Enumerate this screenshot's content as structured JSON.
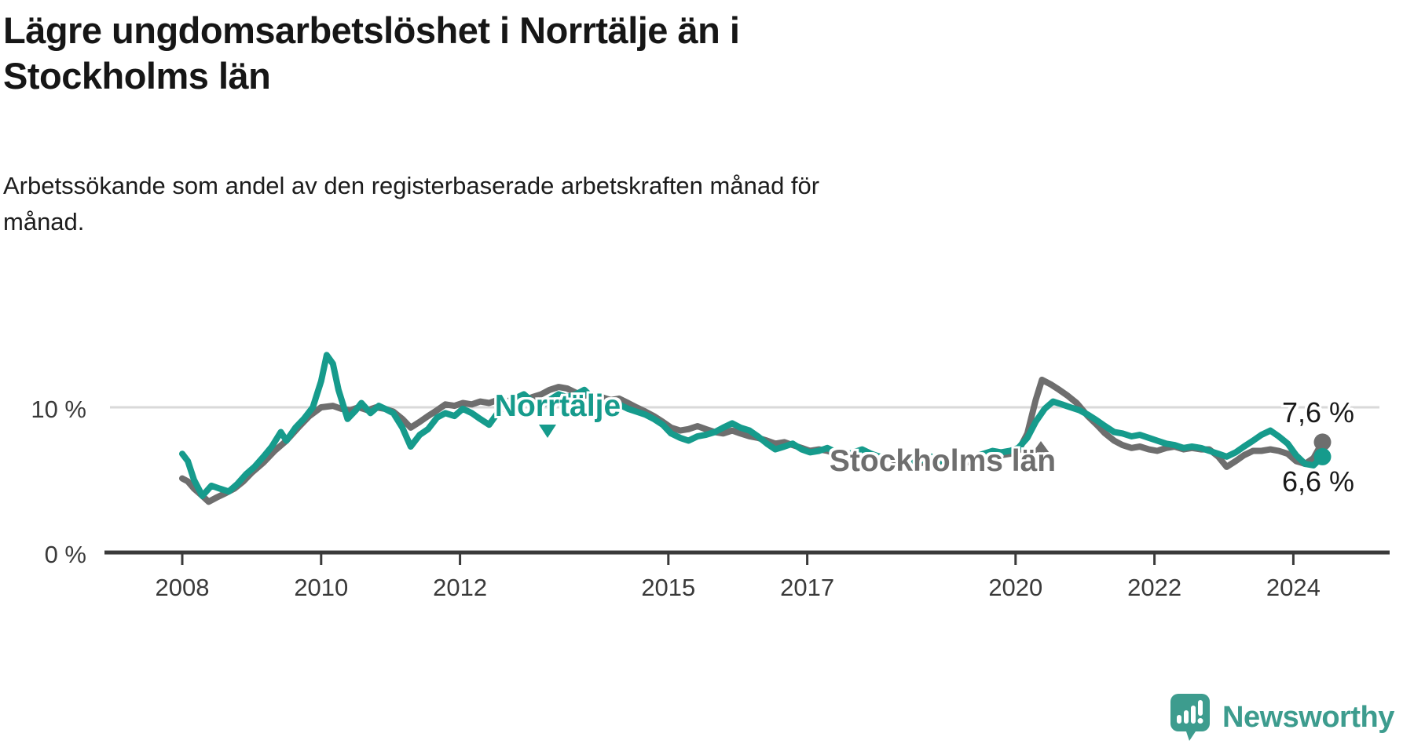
{
  "header": {
    "title_line1": "Lägre ungdomsarbetslöshet i Norrtälje än i",
    "title_line2": "Stockholms län",
    "subtitle_line1": "Arbetssökande som andel av den registerbaserade arbetskraften månad för",
    "subtitle_line2": "månad."
  },
  "branding": {
    "logo_text": "Newsworthy",
    "logo_icon": "newsworthy-speech-bubble-chart-icon",
    "brand_color": "#3d9c8e"
  },
  "chart_data": {
    "type": "line",
    "unit": "%",
    "grid": "single horizontal gridline at 10 %",
    "legend_position": "inline labels on lines",
    "x_axis": {
      "ticks": [
        2008,
        2010,
        2012,
        2015,
        2017,
        2020,
        2022,
        2024
      ],
      "range_years": [
        2006.9,
        2025.3
      ]
    },
    "y_axis": {
      "ticks": [
        {
          "value": 0,
          "label": "0 %"
        },
        {
          "value": 10,
          "label": "10 %"
        }
      ],
      "range": [
        0,
        14.5
      ]
    },
    "colors": {
      "norrtalje": "#169b8c",
      "stockholm": "#6e6e6e",
      "gridline": "#d9d9d9",
      "axis": "#3a3a3a"
    },
    "series": [
      {
        "name": "Stockholms län",
        "color": "#6e6e6e",
        "end_label": "7,6 %",
        "end_value": 7.6,
        "points": [
          [
            2008.0,
            5.1
          ],
          [
            2008.08,
            4.9
          ],
          [
            2008.17,
            4.4
          ],
          [
            2008.29,
            3.9
          ],
          [
            2008.38,
            3.5
          ],
          [
            2008.5,
            3.8
          ],
          [
            2008.63,
            4.1
          ],
          [
            2008.75,
            4.4
          ],
          [
            2008.88,
            4.9
          ],
          [
            2009.0,
            5.5
          ],
          [
            2009.17,
            6.2
          ],
          [
            2009.33,
            7.0
          ],
          [
            2009.5,
            7.7
          ],
          [
            2009.67,
            8.6
          ],
          [
            2009.83,
            9.4
          ],
          [
            2010.0,
            10.0
          ],
          [
            2010.17,
            10.1
          ],
          [
            2010.29,
            9.9
          ],
          [
            2010.42,
            9.8
          ],
          [
            2010.54,
            10.0
          ],
          [
            2010.67,
            9.8
          ],
          [
            2010.79,
            10.0
          ],
          [
            2010.92,
            9.9
          ],
          [
            2011.04,
            9.7
          ],
          [
            2011.17,
            9.2
          ],
          [
            2011.29,
            8.6
          ],
          [
            2011.42,
            9.0
          ],
          [
            2011.54,
            9.4
          ],
          [
            2011.67,
            9.8
          ],
          [
            2011.79,
            10.2
          ],
          [
            2011.92,
            10.1
          ],
          [
            2012.04,
            10.3
          ],
          [
            2012.17,
            10.2
          ],
          [
            2012.29,
            10.4
          ],
          [
            2012.42,
            10.3
          ],
          [
            2012.54,
            10.5
          ],
          [
            2012.67,
            10.4
          ],
          [
            2012.79,
            10.6
          ],
          [
            2012.92,
            10.5
          ],
          [
            2013.04,
            10.7
          ],
          [
            2013.17,
            10.9
          ],
          [
            2013.29,
            11.2
          ],
          [
            2013.42,
            11.4
          ],
          [
            2013.54,
            11.3
          ],
          [
            2013.67,
            11.0
          ],
          [
            2013.79,
            10.8
          ],
          [
            2013.92,
            10.9
          ],
          [
            2014.04,
            10.7
          ],
          [
            2014.17,
            10.5
          ],
          [
            2014.29,
            10.6
          ],
          [
            2014.42,
            10.3
          ],
          [
            2014.54,
            10.0
          ],
          [
            2014.67,
            9.7
          ],
          [
            2014.79,
            9.4
          ],
          [
            2014.92,
            9.0
          ],
          [
            2015.04,
            8.6
          ],
          [
            2015.17,
            8.4
          ],
          [
            2015.29,
            8.5
          ],
          [
            2015.42,
            8.7
          ],
          [
            2015.54,
            8.5
          ],
          [
            2015.67,
            8.3
          ],
          [
            2015.79,
            8.2
          ],
          [
            2015.92,
            8.4
          ],
          [
            2016.04,
            8.2
          ],
          [
            2016.17,
            8.0
          ],
          [
            2016.29,
            7.9
          ],
          [
            2016.42,
            7.7
          ],
          [
            2016.54,
            7.5
          ],
          [
            2016.67,
            7.6
          ],
          [
            2016.79,
            7.4
          ],
          [
            2016.92,
            7.2
          ],
          [
            2017.04,
            7.0
          ],
          [
            2017.17,
            7.1
          ],
          [
            2017.29,
            7.0
          ],
          [
            2017.42,
            6.8
          ],
          [
            2017.54,
            6.6
          ],
          [
            2017.67,
            6.8
          ],
          [
            2017.79,
            6.9
          ],
          [
            2017.92,
            6.6
          ],
          [
            2018.04,
            6.4
          ],
          [
            2018.17,
            6.5
          ],
          [
            2018.29,
            6.3
          ],
          [
            2018.42,
            6.1
          ],
          [
            2018.54,
            6.0
          ],
          [
            2018.67,
            6.2
          ],
          [
            2018.79,
            6.4
          ],
          [
            2018.92,
            6.1
          ],
          [
            2019.04,
            6.3
          ],
          [
            2019.17,
            6.4
          ],
          [
            2019.29,
            6.2
          ],
          [
            2019.42,
            6.4
          ],
          [
            2019.54,
            6.6
          ],
          [
            2019.67,
            6.8
          ],
          [
            2019.79,
            6.7
          ],
          [
            2019.92,
            6.8
          ],
          [
            2020.04,
            7.0
          ],
          [
            2020.17,
            8.2
          ],
          [
            2020.29,
            10.5
          ],
          [
            2020.38,
            11.9
          ],
          [
            2020.5,
            11.6
          ],
          [
            2020.63,
            11.2
          ],
          [
            2020.75,
            10.8
          ],
          [
            2020.88,
            10.3
          ],
          [
            2021.04,
            9.4
          ],
          [
            2021.17,
            8.8
          ],
          [
            2021.29,
            8.2
          ],
          [
            2021.42,
            7.7
          ],
          [
            2021.54,
            7.4
          ],
          [
            2021.67,
            7.2
          ],
          [
            2021.79,
            7.3
          ],
          [
            2021.92,
            7.1
          ],
          [
            2022.04,
            7.0
          ],
          [
            2022.17,
            7.2
          ],
          [
            2022.29,
            7.3
          ],
          [
            2022.42,
            7.1
          ],
          [
            2022.54,
            7.2
          ],
          [
            2022.67,
            7.1
          ],
          [
            2022.79,
            7.1
          ],
          [
            2022.92,
            6.6
          ],
          [
            2023.04,
            5.9
          ],
          [
            2023.17,
            6.3
          ],
          [
            2023.29,
            6.7
          ],
          [
            2023.42,
            7.0
          ],
          [
            2023.54,
            7.0
          ],
          [
            2023.67,
            7.1
          ],
          [
            2023.79,
            7.0
          ],
          [
            2023.92,
            6.8
          ],
          [
            2024.04,
            6.3
          ],
          [
            2024.17,
            6.1
          ],
          [
            2024.29,
            6.5
          ],
          [
            2024.42,
            7.6
          ]
        ]
      },
      {
        "name": "Norrtälje",
        "color": "#169b8c",
        "end_label": "6,6 %",
        "end_value": 6.6,
        "points": [
          [
            2008.0,
            6.8
          ],
          [
            2008.08,
            6.3
          ],
          [
            2008.17,
            5.0
          ],
          [
            2008.29,
            3.9
          ],
          [
            2008.42,
            4.6
          ],
          [
            2008.54,
            4.4
          ],
          [
            2008.67,
            4.2
          ],
          [
            2008.79,
            4.7
          ],
          [
            2008.92,
            5.4
          ],
          [
            2009.04,
            5.9
          ],
          [
            2009.17,
            6.6
          ],
          [
            2009.29,
            7.3
          ],
          [
            2009.42,
            8.3
          ],
          [
            2009.5,
            7.7
          ],
          [
            2009.63,
            8.6
          ],
          [
            2009.75,
            9.2
          ],
          [
            2009.88,
            10.0
          ],
          [
            2010.0,
            11.8
          ],
          [
            2010.08,
            13.6
          ],
          [
            2010.17,
            13.0
          ],
          [
            2010.25,
            11.2
          ],
          [
            2010.38,
            9.2
          ],
          [
            2010.5,
            9.8
          ],
          [
            2010.58,
            10.3
          ],
          [
            2010.71,
            9.6
          ],
          [
            2010.83,
            10.1
          ],
          [
            2010.92,
            9.9
          ],
          [
            2011.04,
            9.6
          ],
          [
            2011.17,
            8.6
          ],
          [
            2011.29,
            7.3
          ],
          [
            2011.42,
            8.1
          ],
          [
            2011.54,
            8.5
          ],
          [
            2011.67,
            9.3
          ],
          [
            2011.79,
            9.6
          ],
          [
            2011.92,
            9.4
          ],
          [
            2012.04,
            9.9
          ],
          [
            2012.17,
            9.6
          ],
          [
            2012.29,
            9.2
          ],
          [
            2012.42,
            8.8
          ],
          [
            2012.54,
            9.6
          ],
          [
            2012.67,
            10.2
          ],
          [
            2012.79,
            10.6
          ],
          [
            2012.92,
            10.9
          ],
          [
            2013.04,
            10.4
          ],
          [
            2013.17,
            10.1
          ],
          [
            2013.29,
            10.5
          ],
          [
            2013.42,
            10.9
          ],
          [
            2013.54,
            10.7
          ],
          [
            2013.67,
            10.9
          ],
          [
            2013.79,
            11.2
          ],
          [
            2013.92,
            10.6
          ],
          [
            2014.04,
            10.3
          ],
          [
            2014.17,
            10.0
          ],
          [
            2014.29,
            10.2
          ],
          [
            2014.42,
            9.9
          ],
          [
            2014.54,
            9.7
          ],
          [
            2014.67,
            9.5
          ],
          [
            2014.79,
            9.2
          ],
          [
            2014.92,
            8.8
          ],
          [
            2015.04,
            8.2
          ],
          [
            2015.17,
            7.9
          ],
          [
            2015.29,
            7.7
          ],
          [
            2015.42,
            8.0
          ],
          [
            2015.54,
            8.1
          ],
          [
            2015.67,
            8.3
          ],
          [
            2015.79,
            8.6
          ],
          [
            2015.92,
            8.9
          ],
          [
            2016.04,
            8.6
          ],
          [
            2016.17,
            8.4
          ],
          [
            2016.29,
            8.0
          ],
          [
            2016.42,
            7.5
          ],
          [
            2016.54,
            7.1
          ],
          [
            2016.67,
            7.3
          ],
          [
            2016.79,
            7.5
          ],
          [
            2016.92,
            7.1
          ],
          [
            2017.04,
            6.9
          ],
          [
            2017.17,
            7.0
          ],
          [
            2017.29,
            7.2
          ],
          [
            2017.42,
            6.9
          ],
          [
            2017.54,
            6.7
          ],
          [
            2017.67,
            6.9
          ],
          [
            2017.79,
            7.1
          ],
          [
            2017.92,
            6.8
          ],
          [
            2018.04,
            6.6
          ],
          [
            2018.17,
            6.7
          ],
          [
            2018.29,
            6.5
          ],
          [
            2018.42,
            6.3
          ],
          [
            2018.54,
            6.2
          ],
          [
            2018.67,
            6.4
          ],
          [
            2018.79,
            6.6
          ],
          [
            2018.92,
            6.3
          ],
          [
            2019.04,
            6.5
          ],
          [
            2019.17,
            6.6
          ],
          [
            2019.29,
            6.4
          ],
          [
            2019.42,
            6.6
          ],
          [
            2019.54,
            6.8
          ],
          [
            2019.67,
            7.0
          ],
          [
            2019.79,
            6.9
          ],
          [
            2019.92,
            7.0
          ],
          [
            2020.04,
            7.2
          ],
          [
            2020.17,
            7.9
          ],
          [
            2020.29,
            9.0
          ],
          [
            2020.42,
            9.9
          ],
          [
            2020.54,
            10.4
          ],
          [
            2020.67,
            10.2
          ],
          [
            2020.79,
            10.0
          ],
          [
            2020.92,
            9.8
          ],
          [
            2021.04,
            9.5
          ],
          [
            2021.17,
            9.1
          ],
          [
            2021.29,
            8.7
          ],
          [
            2021.42,
            8.3
          ],
          [
            2021.54,
            8.2
          ],
          [
            2021.67,
            8.0
          ],
          [
            2021.79,
            8.1
          ],
          [
            2021.92,
            7.9
          ],
          [
            2022.04,
            7.7
          ],
          [
            2022.17,
            7.5
          ],
          [
            2022.29,
            7.4
          ],
          [
            2022.42,
            7.2
          ],
          [
            2022.54,
            7.3
          ],
          [
            2022.67,
            7.2
          ],
          [
            2022.79,
            7.0
          ],
          [
            2022.92,
            6.8
          ],
          [
            2023.04,
            6.6
          ],
          [
            2023.17,
            6.9
          ],
          [
            2023.29,
            7.3
          ],
          [
            2023.42,
            7.7
          ],
          [
            2023.54,
            8.1
          ],
          [
            2023.67,
            8.4
          ],
          [
            2023.79,
            8.0
          ],
          [
            2023.92,
            7.5
          ],
          [
            2024.04,
            6.7
          ],
          [
            2024.17,
            6.1
          ],
          [
            2024.29,
            6.0
          ],
          [
            2024.42,
            6.6
          ]
        ]
      }
    ]
  }
}
